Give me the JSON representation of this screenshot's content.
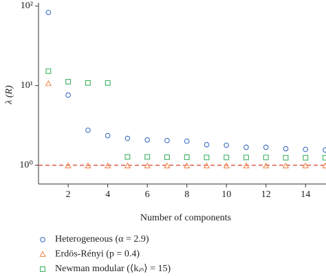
{
  "chart_data": {
    "type": "scatter",
    "log_y": true,
    "x_label": "Number of components",
    "y_label": "λ (R)",
    "xlim": [
      0.5,
      15
    ],
    "xticks": [
      2,
      4,
      6,
      8,
      10,
      12,
      14
    ],
    "ylim": [
      0.58,
      110
    ],
    "yticks": [
      {
        "value": 1,
        "label": "10⁰"
      },
      {
        "value": 10,
        "label": "10¹"
      },
      {
        "value": 100,
        "label": "10²"
      }
    ],
    "reference_line": {
      "y": 1,
      "color": "#e05a4e",
      "dashed": true
    },
    "series": [
      {
        "name": "Heterogeneous (α = 2.9)",
        "color": "#3a6cc2",
        "marker": "circle",
        "x": [
          1,
          2,
          3,
          4,
          5,
          6,
          7,
          8,
          9,
          10,
          11,
          12,
          13,
          14,
          15
        ],
        "values": [
          83,
          7.6,
          2.75,
          2.35,
          2.17,
          2.08,
          2.04,
          2.0,
          1.81,
          1.78,
          1.68,
          1.68,
          1.61,
          1.58,
          1.55
        ]
      },
      {
        "name": "Erdös-Rényi (p = 0.4)",
        "color": "#f08a50",
        "marker": "triangle",
        "x": [
          1,
          2,
          3,
          4,
          5,
          6,
          7,
          8,
          9,
          10,
          11,
          12,
          13,
          14,
          15
        ],
        "values": [
          10.6,
          0.98,
          0.98,
          0.98,
          0.98,
          0.98,
          0.98,
          0.98,
          0.98,
          0.98,
          0.98,
          0.98,
          0.98,
          0.98,
          0.98
        ]
      },
      {
        "name": "Newman modular (⟨kᵢₙ⟩ = 15)",
        "color": "#3cb060",
        "marker": "square",
        "x": [
          1,
          2,
          3,
          4,
          5,
          6,
          7,
          8,
          9,
          10,
          11,
          12,
          13,
          14,
          15
        ],
        "values": [
          15.2,
          11.2,
          10.8,
          10.8,
          1.27,
          1.27,
          1.26,
          1.26,
          1.25,
          1.25,
          1.25,
          1.25,
          1.24,
          1.24,
          1.24
        ]
      }
    ]
  }
}
